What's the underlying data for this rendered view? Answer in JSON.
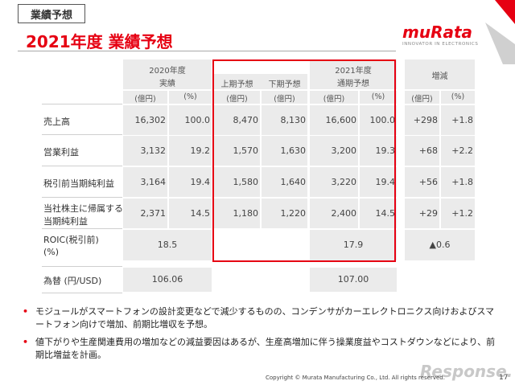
{
  "header": {
    "tag": "業績予想",
    "title": "2021年度 業績予想"
  },
  "logo": {
    "name": "muRata",
    "tagline": "INNOVATOR IN ELECTRONICS"
  },
  "table": {
    "group_headers": {
      "y2020_line1": "2020年度",
      "y2020_line2": "実績",
      "h1": "上期予想",
      "h2": "下期予想",
      "y2021_line1": "2021年度",
      "y2021_line2": "通期予想",
      "change": "増減"
    },
    "units": [
      "(億円)",
      "(%)",
      "(億円)",
      "(億円)",
      "(億円)",
      "(%)",
      "(億円)",
      "(%)"
    ],
    "rows": [
      {
        "label": "売上高",
        "values": [
          "16,302",
          "100.0",
          "8,470",
          "8,130",
          "16,600",
          "100.0",
          "+298",
          "+1.8"
        ]
      },
      {
        "label": "営業利益",
        "values": [
          "3,132",
          "19.2",
          "1,570",
          "1,630",
          "3,200",
          "19.3",
          "+68",
          "+2.2"
        ]
      },
      {
        "label": "税引前当期純利益",
        "values": [
          "3,164",
          "19.4",
          "1,580",
          "1,640",
          "3,220",
          "19.4",
          "+56",
          "+1.8"
        ]
      },
      {
        "label_line1": "当社株主に帰属する",
        "label_line2": "当期純利益",
        "values": [
          "2,371",
          "14.5",
          "1,180",
          "1,220",
          "2,400",
          "14.5",
          "+29",
          "+1.2"
        ]
      }
    ],
    "roic": {
      "label_line1": "ROIC(税引前)",
      "label_line2": "(%)",
      "actual": "18.5",
      "forecast": "17.9",
      "change": "▲0.6"
    },
    "fx": {
      "label": "為替 (円/USD)",
      "actual": "106.06",
      "forecast": "107.00"
    }
  },
  "bullets": [
    "モジュールがスマートフォンの設計変更などで減少するものの、コンデンサがカーエレクトロニクス向けおよびスマートフォン向けで増加、前期比増収を予想。",
    "値下がりや生産関連費用の増加などの減益要因はあるが、生産高増加に伴う操業度益やコストダウンなどにより、前期比増益を計画。"
  ],
  "footer": {
    "copyright": "Copyright © Murata Manufacturing Co., Ltd. All rights reserved.",
    "page": "17",
    "watermark": "Response."
  },
  "colors": {
    "accent": "#e60012",
    "cell_bg": "#ebebeb"
  }
}
